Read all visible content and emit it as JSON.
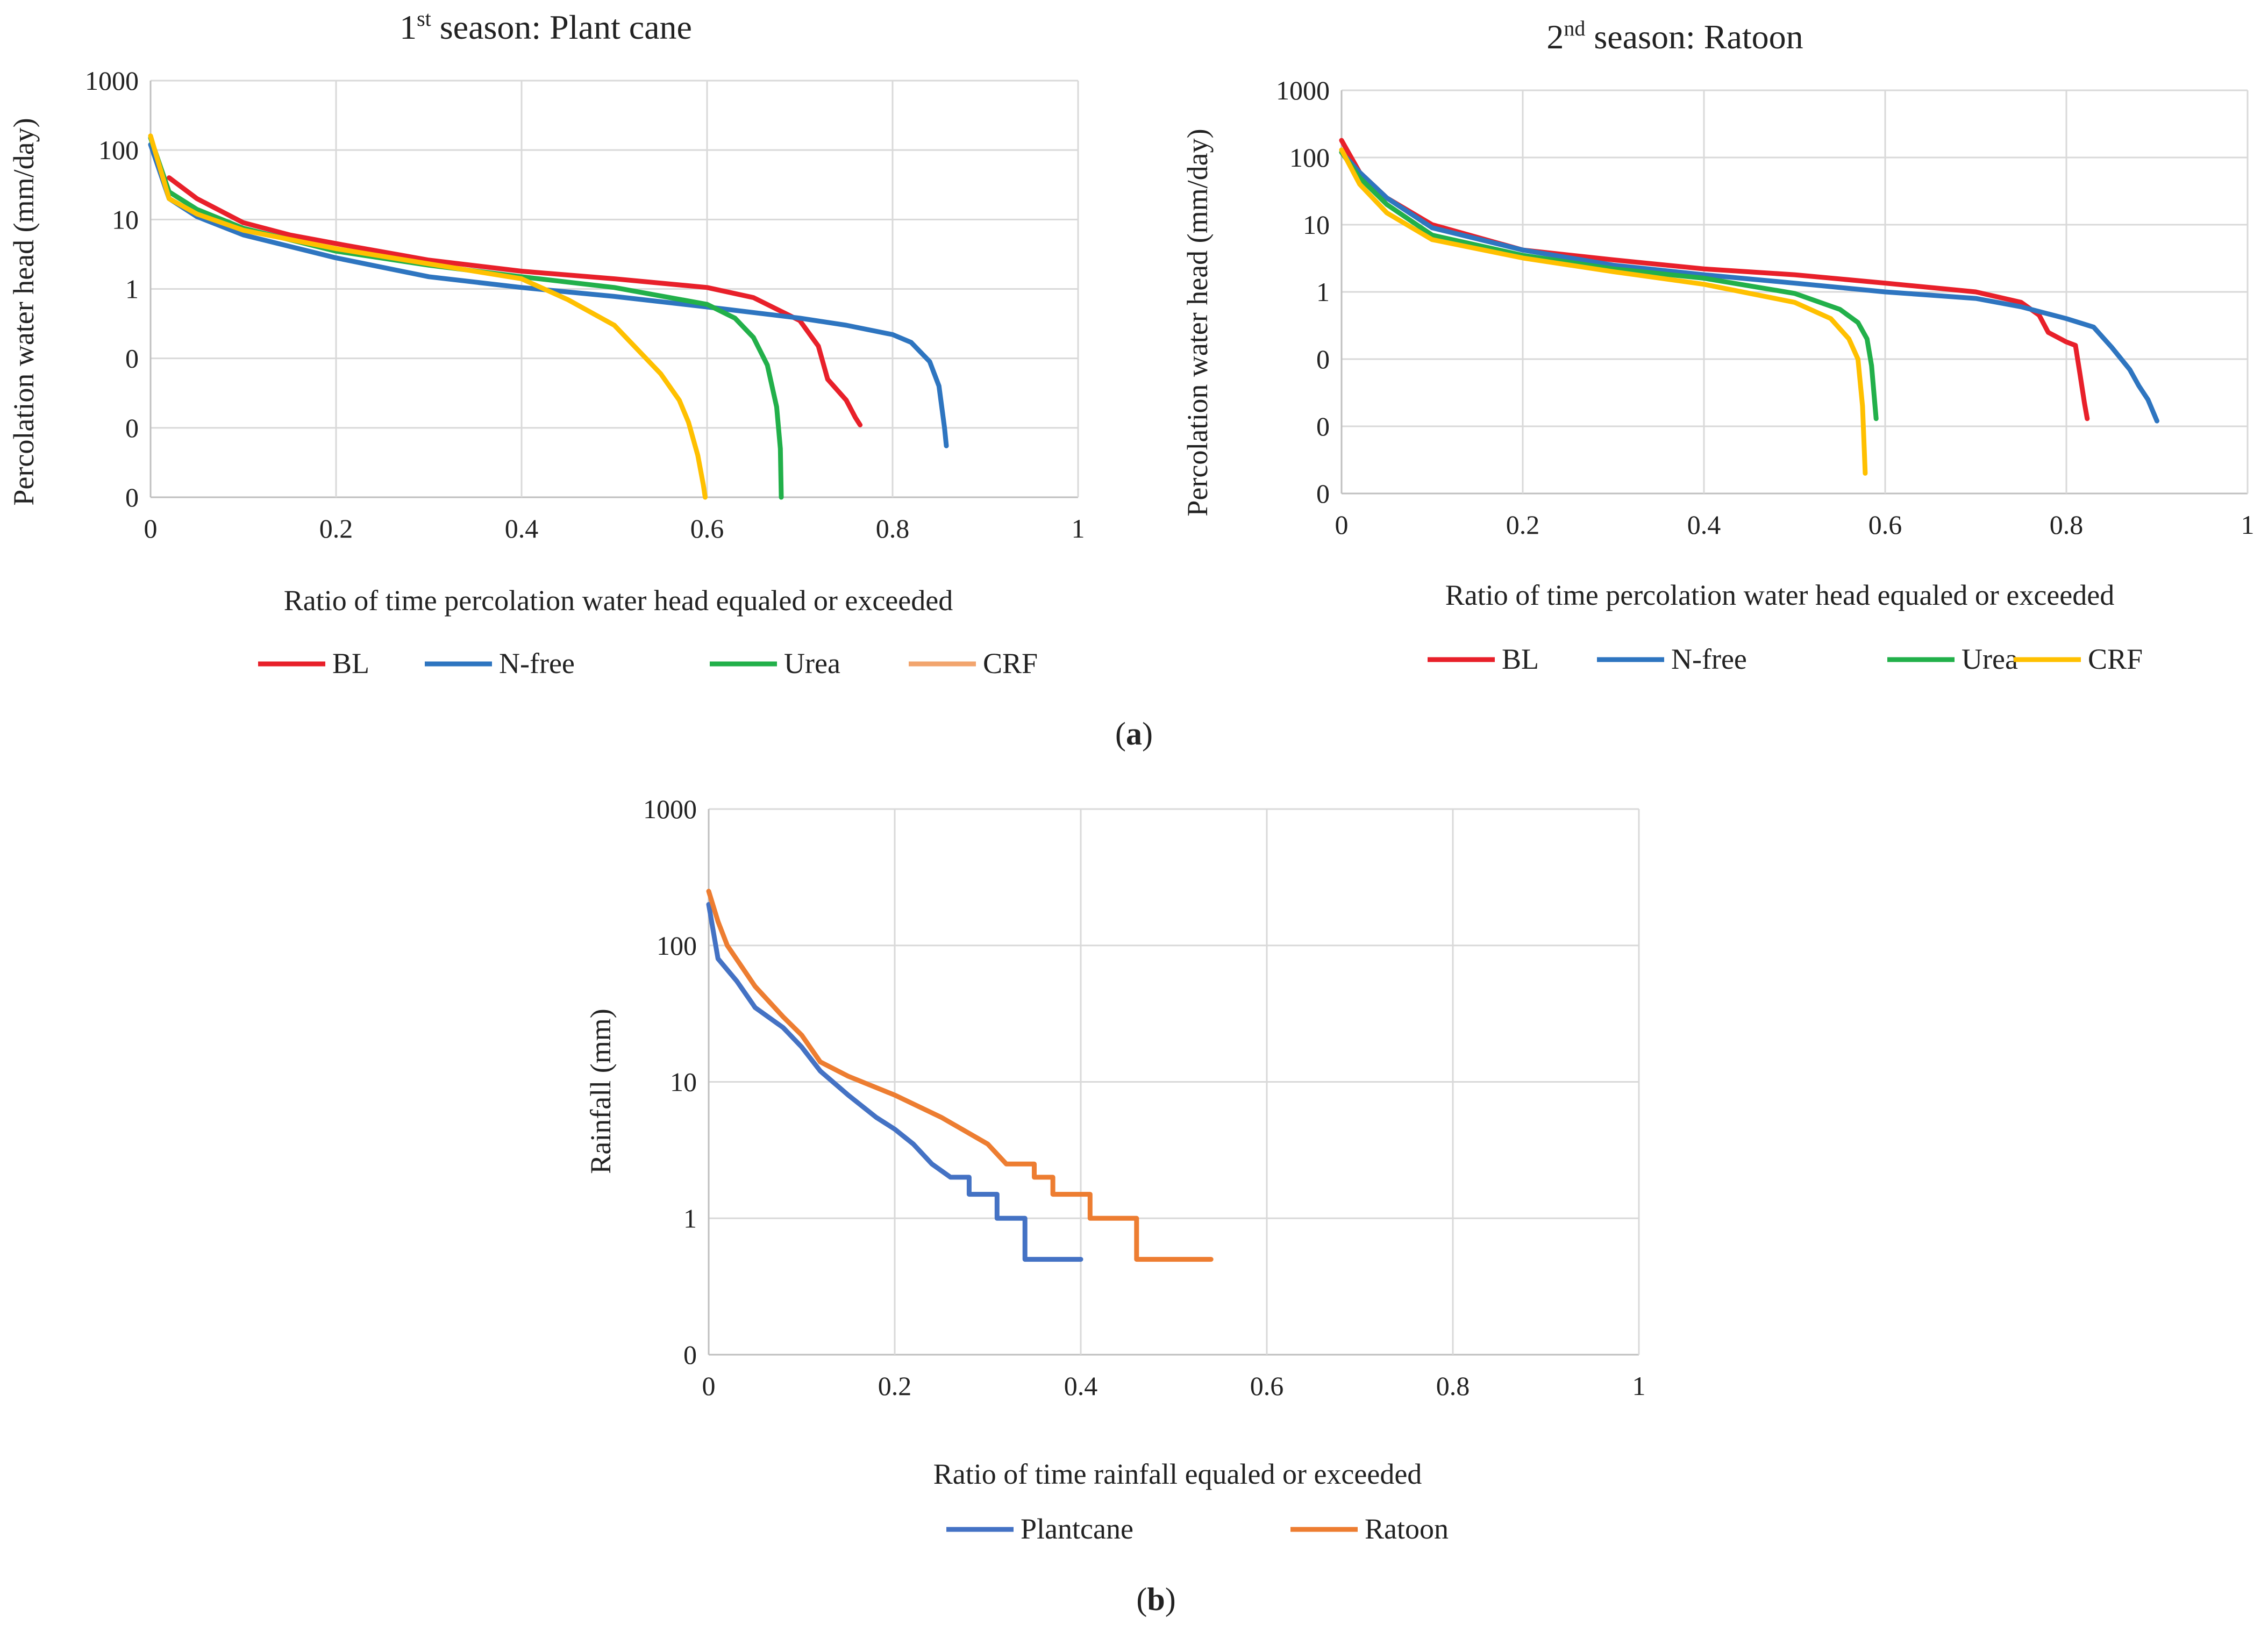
{
  "figure": {
    "caption_a": {
      "open": "(",
      "letter": "a",
      "close": ")"
    },
    "caption_b": {
      "open": "(",
      "letter": "b",
      "close": ")"
    }
  },
  "chart_data": [
    {
      "type": "line",
      "title_main": "1",
      "title_sup": "st",
      "title_rest": " season:  Plant cane",
      "xlabel": "Ratio of time percolation water head equaled or exceeded",
      "ylabel": "Percolation water head  (mm/day)",
      "xlim": [
        0,
        1
      ],
      "xticks": [
        "0",
        "0.2",
        "0.4",
        "0.6",
        "0.8",
        "1"
      ],
      "yticks": [
        "0",
        "0",
        "0",
        "1",
        "10",
        "100",
        "1000"
      ],
      "ylim_log": [
        0.001,
        1000
      ],
      "yscale": "log",
      "grid": true,
      "legend_position": "bottom",
      "series": [
        {
          "name": "BL",
          "color": "#e8202a",
          "points": [
            [
              0.02,
              40
            ],
            [
              0.05,
              20
            ],
            [
              0.1,
              9
            ],
            [
              0.15,
              6
            ],
            [
              0.2,
              4.5
            ],
            [
              0.3,
              2.6
            ],
            [
              0.4,
              1.8
            ],
            [
              0.5,
              1.4
            ],
            [
              0.6,
              1.05
            ],
            [
              0.65,
              0.75
            ],
            [
              0.7,
              0.35
            ],
            [
              0.72,
              0.15
            ],
            [
              0.73,
              0.05
            ],
            [
              0.75,
              0.025
            ],
            [
              0.76,
              0.014
            ],
            [
              0.765,
              0.011
            ]
          ]
        },
        {
          "name": "N-free",
          "color": "#2e75c0",
          "points": [
            [
              0,
              120
            ],
            [
              0.02,
              20
            ],
            [
              0.05,
              11
            ],
            [
              0.1,
              6
            ],
            [
              0.2,
              2.8
            ],
            [
              0.3,
              1.5
            ],
            [
              0.4,
              1.05
            ],
            [
              0.5,
              0.78
            ],
            [
              0.6,
              0.55
            ],
            [
              0.7,
              0.38
            ],
            [
              0.75,
              0.3
            ],
            [
              0.8,
              0.22
            ],
            [
              0.82,
              0.17
            ],
            [
              0.84,
              0.09
            ],
            [
              0.85,
              0.04
            ],
            [
              0.856,
              0.01
            ],
            [
              0.858,
              0.0055
            ]
          ]
        },
        {
          "name": "Urea",
          "color": "#22b04a",
          "points": [
            [
              0,
              150
            ],
            [
              0.02,
              25
            ],
            [
              0.05,
              14
            ],
            [
              0.1,
              7.5
            ],
            [
              0.2,
              3.5
            ],
            [
              0.3,
              2.2
            ],
            [
              0.4,
              1.5
            ],
            [
              0.5,
              1.05
            ],
            [
              0.6,
              0.6
            ],
            [
              0.63,
              0.38
            ],
            [
              0.65,
              0.2
            ],
            [
              0.665,
              0.08
            ],
            [
              0.675,
              0.02
            ],
            [
              0.679,
              0.005
            ],
            [
              0.68,
              0.001
            ]
          ]
        },
        {
          "name": "CRF",
          "color": "#f2a56e",
          "line_color": "#ffc000",
          "points": [
            [
              0,
              160
            ],
            [
              0.02,
              20
            ],
            [
              0.05,
              12
            ],
            [
              0.1,
              7
            ],
            [
              0.2,
              3.8
            ],
            [
              0.3,
              2.3
            ],
            [
              0.4,
              1.4
            ],
            [
              0.45,
              0.7
            ],
            [
              0.5,
              0.3
            ],
            [
              0.55,
              0.06
            ],
            [
              0.57,
              0.025
            ],
            [
              0.58,
              0.012
            ],
            [
              0.59,
              0.004
            ],
            [
              0.596,
              0.0015
            ],
            [
              0.598,
              0.001
            ]
          ]
        }
      ]
    },
    {
      "type": "line",
      "title_main": "2",
      "title_sup": "nd",
      "title_rest": " season:  Ratoon",
      "xlabel": "Ratio of time percolation water head equaled or exceeded",
      "ylabel": "Percolation water head  (mm/day)",
      "xlim": [
        0,
        1
      ],
      "xticks": [
        "0",
        "0.2",
        "0.4",
        "0.6",
        "0.8",
        "1"
      ],
      "yticks": [
        "0",
        "0",
        "0",
        "1",
        "10",
        "100",
        "1000"
      ],
      "ylim_log": [
        0.001,
        1000
      ],
      "yscale": "log",
      "grid": true,
      "legend_position": "bottom",
      "series": [
        {
          "name": "BL",
          "color": "#e8202a",
          "points": [
            [
              0,
              180
            ],
            [
              0.02,
              60
            ],
            [
              0.05,
              25
            ],
            [
              0.1,
              10
            ],
            [
              0.2,
              4.2
            ],
            [
              0.3,
              3
            ],
            [
              0.4,
              2.2
            ],
            [
              0.5,
              1.8
            ],
            [
              0.6,
              1.35
            ],
            [
              0.7,
              1
            ],
            [
              0.75,
              0.7
            ],
            [
              0.77,
              0.45
            ],
            [
              0.78,
              0.25
            ],
            [
              0.8,
              0.18
            ],
            [
              0.81,
              0.16
            ],
            [
              0.815,
              0.06
            ],
            [
              0.82,
              0.022
            ],
            [
              0.823,
              0.013
            ]
          ]
        },
        {
          "name": "N-free",
          "color": "#2e75c0",
          "points": [
            [
              0,
              120
            ],
            [
              0.02,
              60
            ],
            [
              0.05,
              25
            ],
            [
              0.1,
              9
            ],
            [
              0.2,
              4.2
            ],
            [
              0.3,
              2.5
            ],
            [
              0.4,
              1.8
            ],
            [
              0.5,
              1.35
            ],
            [
              0.6,
              1.0
            ],
            [
              0.7,
              0.8
            ],
            [
              0.75,
              0.6
            ],
            [
              0.8,
              0.4
            ],
            [
              0.83,
              0.3
            ],
            [
              0.85,
              0.15
            ],
            [
              0.87,
              0.07
            ],
            [
              0.88,
              0.04
            ],
            [
              0.89,
              0.025
            ],
            [
              0.9,
              0.012
            ]
          ]
        },
        {
          "name": "Urea",
          "color": "#22b04a",
          "points": [
            [
              0,
              120
            ],
            [
              0.02,
              50
            ],
            [
              0.05,
              20
            ],
            [
              0.1,
              7
            ],
            [
              0.2,
              3.5
            ],
            [
              0.3,
              2.2
            ],
            [
              0.4,
              1.6
            ],
            [
              0.5,
              0.95
            ],
            [
              0.55,
              0.55
            ],
            [
              0.57,
              0.35
            ],
            [
              0.58,
              0.2
            ],
            [
              0.585,
              0.08
            ],
            [
              0.59,
              0.013
            ]
          ]
        },
        {
          "name": "CRF",
          "color": "#ffc000",
          "points": [
            [
              0,
              130
            ],
            [
              0.02,
              40
            ],
            [
              0.05,
              15
            ],
            [
              0.1,
              6
            ],
            [
              0.2,
              3.2
            ],
            [
              0.3,
              2.0
            ],
            [
              0.4,
              1.3
            ],
            [
              0.5,
              0.7
            ],
            [
              0.54,
              0.4
            ],
            [
              0.56,
              0.2
            ],
            [
              0.57,
              0.1
            ],
            [
              0.575,
              0.02
            ],
            [
              0.578,
              0.002
            ]
          ]
        }
      ]
    },
    {
      "type": "line",
      "title_main": "",
      "title_sup": "",
      "title_rest": "",
      "xlabel": "Ratio of time rainfall equaled or exceeded",
      "ylabel": "Rainfall (mm)",
      "xlim": [
        0,
        1
      ],
      "xticks": [
        "0",
        "0.2",
        "0.4",
        "0.6",
        "0.8",
        "1"
      ],
      "yticks": [
        "0",
        "1",
        "10",
        "100",
        "1000"
      ],
      "ylim_log": [
        0.1,
        1000
      ],
      "yscale": "log",
      "grid": true,
      "legend_position": "bottom",
      "series": [
        {
          "name": "Plantcane",
          "color": "#4472c4",
          "points": [
            [
              0,
              200
            ],
            [
              0.01,
              80
            ],
            [
              0.03,
              55
            ],
            [
              0.05,
              35
            ],
            [
              0.08,
              25
            ],
            [
              0.1,
              18
            ],
            [
              0.12,
              12
            ],
            [
              0.15,
              8
            ],
            [
              0.18,
              5.5
            ],
            [
              0.2,
              4.5
            ],
            [
              0.22,
              3.5
            ],
            [
              0.24,
              2.5
            ],
            [
              0.26,
              2.0
            ],
            [
              0.28,
              2.0
            ],
            [
              0.28,
              1.5
            ],
            [
              0.31,
              1.5
            ],
            [
              0.31,
              1.0
            ],
            [
              0.34,
              1.0
            ],
            [
              0.34,
              0.5
            ],
            [
              0.4,
              0.5
            ]
          ]
        },
        {
          "name": "Ratoon",
          "color": "#ed7d31",
          "points": [
            [
              0,
              250
            ],
            [
              0.01,
              150
            ],
            [
              0.02,
              100
            ],
            [
              0.05,
              50
            ],
            [
              0.08,
              30
            ],
            [
              0.1,
              22
            ],
            [
              0.12,
              14
            ],
            [
              0.15,
              11
            ],
            [
              0.2,
              8
            ],
            [
              0.25,
              5.5
            ],
            [
              0.3,
              3.5
            ],
            [
              0.32,
              2.5
            ],
            [
              0.35,
              2.5
            ],
            [
              0.35,
              2.0
            ],
            [
              0.37,
              2.0
            ],
            [
              0.37,
              1.5
            ],
            [
              0.41,
              1.5
            ],
            [
              0.41,
              1.0
            ],
            [
              0.46,
              1.0
            ],
            [
              0.46,
              0.5
            ],
            [
              0.54,
              0.5
            ]
          ]
        }
      ]
    }
  ]
}
